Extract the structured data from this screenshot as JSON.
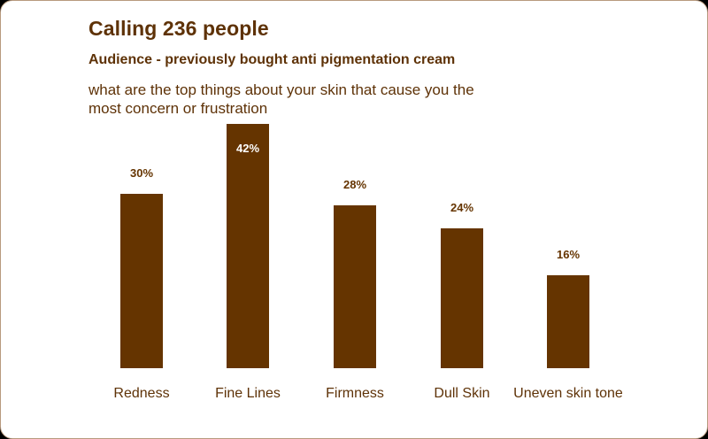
{
  "header": {
    "title": "Calling 236 people",
    "subtitle": "Audience - previously bought anti pigmentation cream",
    "question": "what are the top things about your skin that cause you the most concern or frustration"
  },
  "colors": {
    "bar": "#653400",
    "text": "#5e3207",
    "background": "#ffffff",
    "border": "#b89a7e"
  },
  "chart_data": {
    "type": "bar",
    "title": "Calling 236 people",
    "subtitle": "Audience - previously bought anti pigmentation cream",
    "question": "what are the top things about your skin that cause you the most concern or frustration",
    "categories": [
      "Redness",
      "Fine Lines",
      "Firmness",
      "Dull Skin",
      "Uneven skin tone"
    ],
    "values": [
      30,
      42,
      28,
      24,
      16
    ],
    "value_labels": [
      "30%",
      "42%",
      "28%",
      "24%",
      "16%"
    ],
    "unit": "%",
    "xlabel": "",
    "ylabel": "",
    "ylim": [
      0,
      42
    ],
    "grid": false,
    "legend": "none"
  }
}
